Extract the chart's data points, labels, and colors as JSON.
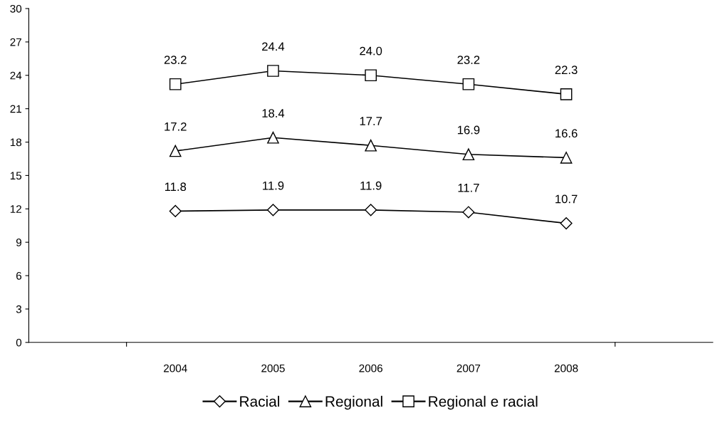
{
  "chart_data": {
    "type": "line",
    "categories": [
      null,
      "2004",
      "2005",
      "2006",
      "2007",
      "2008",
      null
    ],
    "series": [
      {
        "name": "Racial",
        "color": "#000000",
        "marker": "diamond",
        "values": [
          null,
          11.8,
          11.9,
          11.9,
          11.7,
          10.7,
          null
        ],
        "value_labels": [
          null,
          "11.8",
          "11.9",
          "11.9",
          "11.7",
          "10.7",
          null
        ]
      },
      {
        "name": "Regional",
        "color": "#000000",
        "marker": "triangle",
        "values": [
          null,
          17.2,
          18.4,
          17.7,
          16.9,
          16.6,
          null
        ],
        "value_labels": [
          null,
          "17.2",
          "18.4",
          "17.7",
          "16.9",
          "16.6",
          null
        ]
      },
      {
        "name": "Regional e racial",
        "color": "#000000",
        "marker": "square",
        "values": [
          null,
          23.2,
          24.4,
          24.0,
          23.2,
          22.3,
          null
        ],
        "value_labels": [
          null,
          "23.2",
          "24.4",
          "24.0",
          "23.2",
          "22.3",
          null
        ]
      }
    ],
    "ylim": [
      0,
      30
    ],
    "yticks": [
      0,
      3,
      6,
      9,
      12,
      15,
      18,
      21,
      24,
      27,
      30
    ],
    "grid": false,
    "legend": "bottom",
    "line_style": "solid"
  }
}
